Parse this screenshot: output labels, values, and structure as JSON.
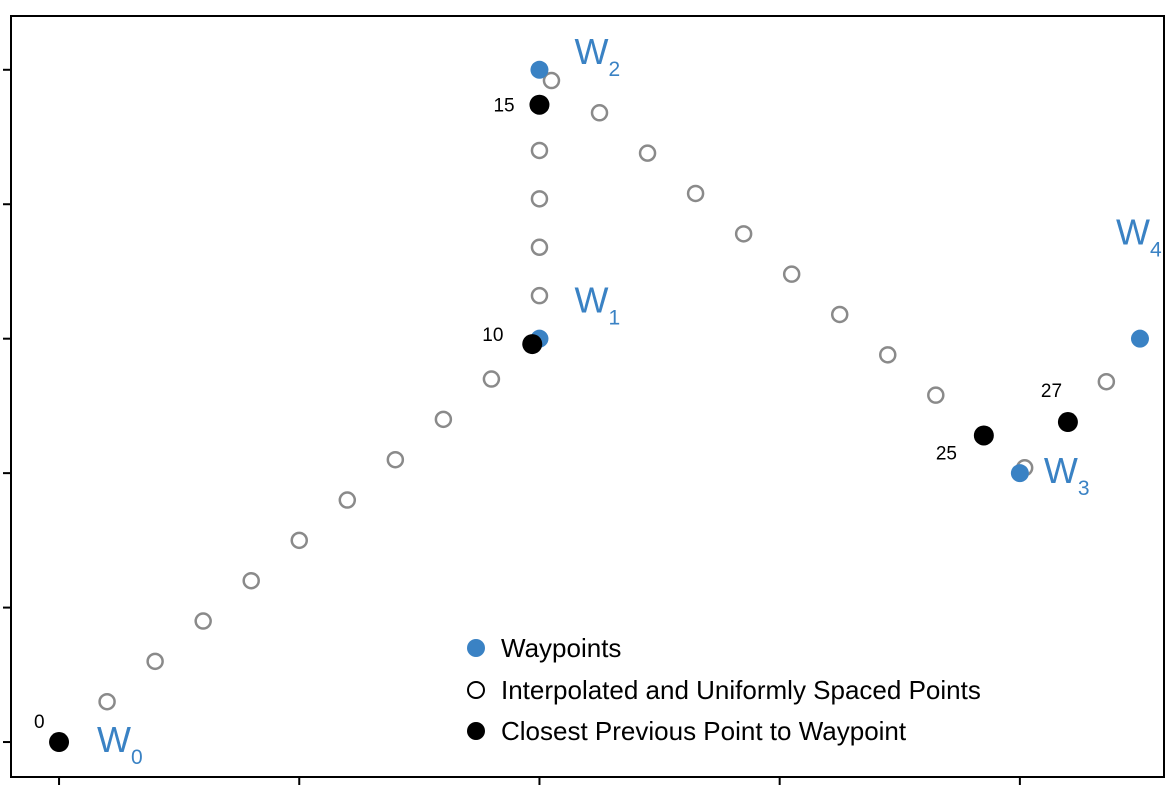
{
  "chart_data": {
    "type": "scatter",
    "xlim": [
      -0.2,
      4.6
    ],
    "ylim": [
      -0.13,
      2.7
    ],
    "grid": false,
    "legend_position": "bottom-center",
    "colors": {
      "waypoint": "#3a82c4",
      "closest": "#000000",
      "interpolated_edge": "#8a8a8a"
    },
    "waypoints": [
      {
        "label": "W",
        "sub": "0",
        "x": 0,
        "y": 0
      },
      {
        "label": "W",
        "sub": "1",
        "x": 2,
        "y": 1.5
      },
      {
        "label": "W",
        "sub": "2",
        "x": 2,
        "y": 2.5
      },
      {
        "label": "W",
        "sub": "3",
        "x": 4,
        "y": 1.0
      },
      {
        "label": "W",
        "sub": "4",
        "x": 4.5,
        "y": 1.5
      }
    ],
    "interpolated": [
      [
        0.0,
        0.0
      ],
      [
        0.2,
        0.15
      ],
      [
        0.4,
        0.3
      ],
      [
        0.6,
        0.45
      ],
      [
        0.8,
        0.6
      ],
      [
        1.0,
        0.75
      ],
      [
        1.2,
        0.9
      ],
      [
        1.4,
        1.05
      ],
      [
        1.6,
        1.2
      ],
      [
        1.8,
        1.35
      ],
      [
        1.97,
        1.48
      ],
      [
        2.0,
        1.66
      ],
      [
        2.0,
        1.84
      ],
      [
        2.0,
        2.02
      ],
      [
        2.0,
        2.2
      ],
      [
        2.0,
        2.37
      ],
      [
        2.05,
        2.46
      ],
      [
        2.25,
        2.34
      ],
      [
        2.45,
        2.19
      ],
      [
        2.65,
        2.04
      ],
      [
        2.85,
        1.89
      ],
      [
        3.05,
        1.74
      ],
      [
        3.25,
        1.59
      ],
      [
        3.45,
        1.44
      ],
      [
        3.65,
        1.29
      ],
      [
        3.85,
        1.14
      ],
      [
        4.02,
        1.02
      ],
      [
        4.2,
        1.19
      ],
      [
        4.36,
        1.34
      ]
    ],
    "closest": [
      {
        "label": "0",
        "x": 0.0,
        "y": 0.0
      },
      {
        "label": "10",
        "x": 1.97,
        "y": 1.48
      },
      {
        "label": "15",
        "x": 2.0,
        "y": 2.37
      },
      {
        "label": "25",
        "x": 3.85,
        "y": 1.14
      },
      {
        "label": "27",
        "x": 4.2,
        "y": 1.19
      }
    ],
    "x_ticks": [
      0,
      1,
      2,
      3,
      4
    ],
    "y_ticks": [
      0,
      0.5,
      1,
      1.5,
      2,
      2.5
    ],
    "legend": [
      {
        "label": "Waypoints",
        "marker": "waypoint"
      },
      {
        "label": "Interpolated and Uniformly Spaced Points",
        "marker": "interpolated"
      },
      {
        "label": "Closest Previous Point to Waypoint",
        "marker": "closest"
      }
    ]
  }
}
